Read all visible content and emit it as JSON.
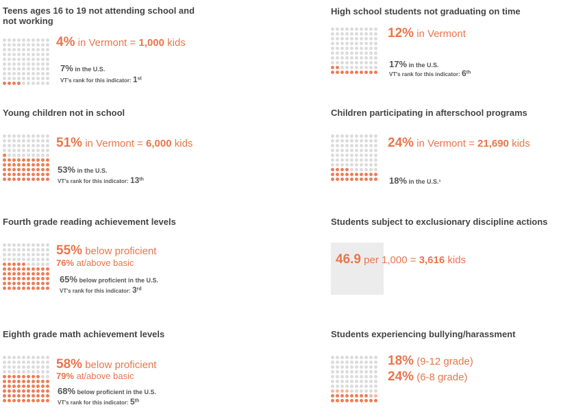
{
  "colors": {
    "accent": "#ee7c55",
    "dot_off": "#dcdcdc",
    "light": "#f5b79a"
  },
  "panels": [
    {
      "id": "teens",
      "title": "Teens ages 16 to 19 not attending school and not working",
      "pct": "4%",
      "text": "in Vermont =",
      "count": "1,000",
      "unit": "kids",
      "us_pct": "7%",
      "us_text": "in the U.S.",
      "rank_label": "VT's rank for this indicator:",
      "rank": "1",
      "rank_suffix": "st",
      "fill": 4
    },
    {
      "id": "grad",
      "title": "High school students not graduating on time",
      "pct": "12%",
      "text": "in Vermont",
      "us_pct": "17%",
      "us_text": "in the U.S.",
      "rank_label": "VT's rank for this indicator:",
      "rank": "6",
      "rank_suffix": "th",
      "fill": 12
    },
    {
      "id": "young",
      "title": "Young children not in school",
      "pct": "51%",
      "text": "in Vermont =",
      "count": "6,000",
      "unit": "kids",
      "us_pct": "53%",
      "us_text": "in the U.S.",
      "rank_label": "VT's rank for this indicator:",
      "rank": "13",
      "rank_suffix": "th",
      "fill": 51
    },
    {
      "id": "after",
      "title": "Children participating in afterschool programs",
      "pct": "24%",
      "text": "in Vermont =",
      "count": "21,690",
      "unit": "kids",
      "us_pct": "18%",
      "us_text": "in the U.S.¹",
      "fill": 24
    },
    {
      "id": "read",
      "title": "Fourth grade reading achievement levels",
      "pct": "55%",
      "text": "below proficient",
      "pct2": "76%",
      "text2": "at/above basic",
      "us_pct": "65%",
      "us_text": "below proficient in the U.S.",
      "rank_label": "VT's rank for this indicator:",
      "rank": "3",
      "rank_suffix": "rd",
      "fill": 55,
      "fill_light": 0,
      "fill2": 76
    },
    {
      "id": "disc",
      "title": "Students subject to exclusionary discipline actions",
      "pct": "46.9",
      "text": "per 1,000 =",
      "count": "3,616",
      "unit": "kids"
    },
    {
      "id": "math",
      "title": "Eighth grade math achievement levels",
      "pct": "58%",
      "text": "below proficient",
      "pct2": "79%",
      "text2": "at/above basic",
      "us_pct": "68%",
      "us_text": "below proficient in the U.S.",
      "rank_label": "VT's rank for this indicator:",
      "rank": "5",
      "rank_suffix": "th",
      "fill": 58,
      "fill2": 79
    },
    {
      "id": "bully",
      "title": "Students experiencing bullying/harassment",
      "pct": "18%",
      "text": "(9-12 grade)",
      "pct2": "24%",
      "text2": "(6-8 grade)",
      "fill": 18,
      "fill_light_extra": 6
    }
  ]
}
